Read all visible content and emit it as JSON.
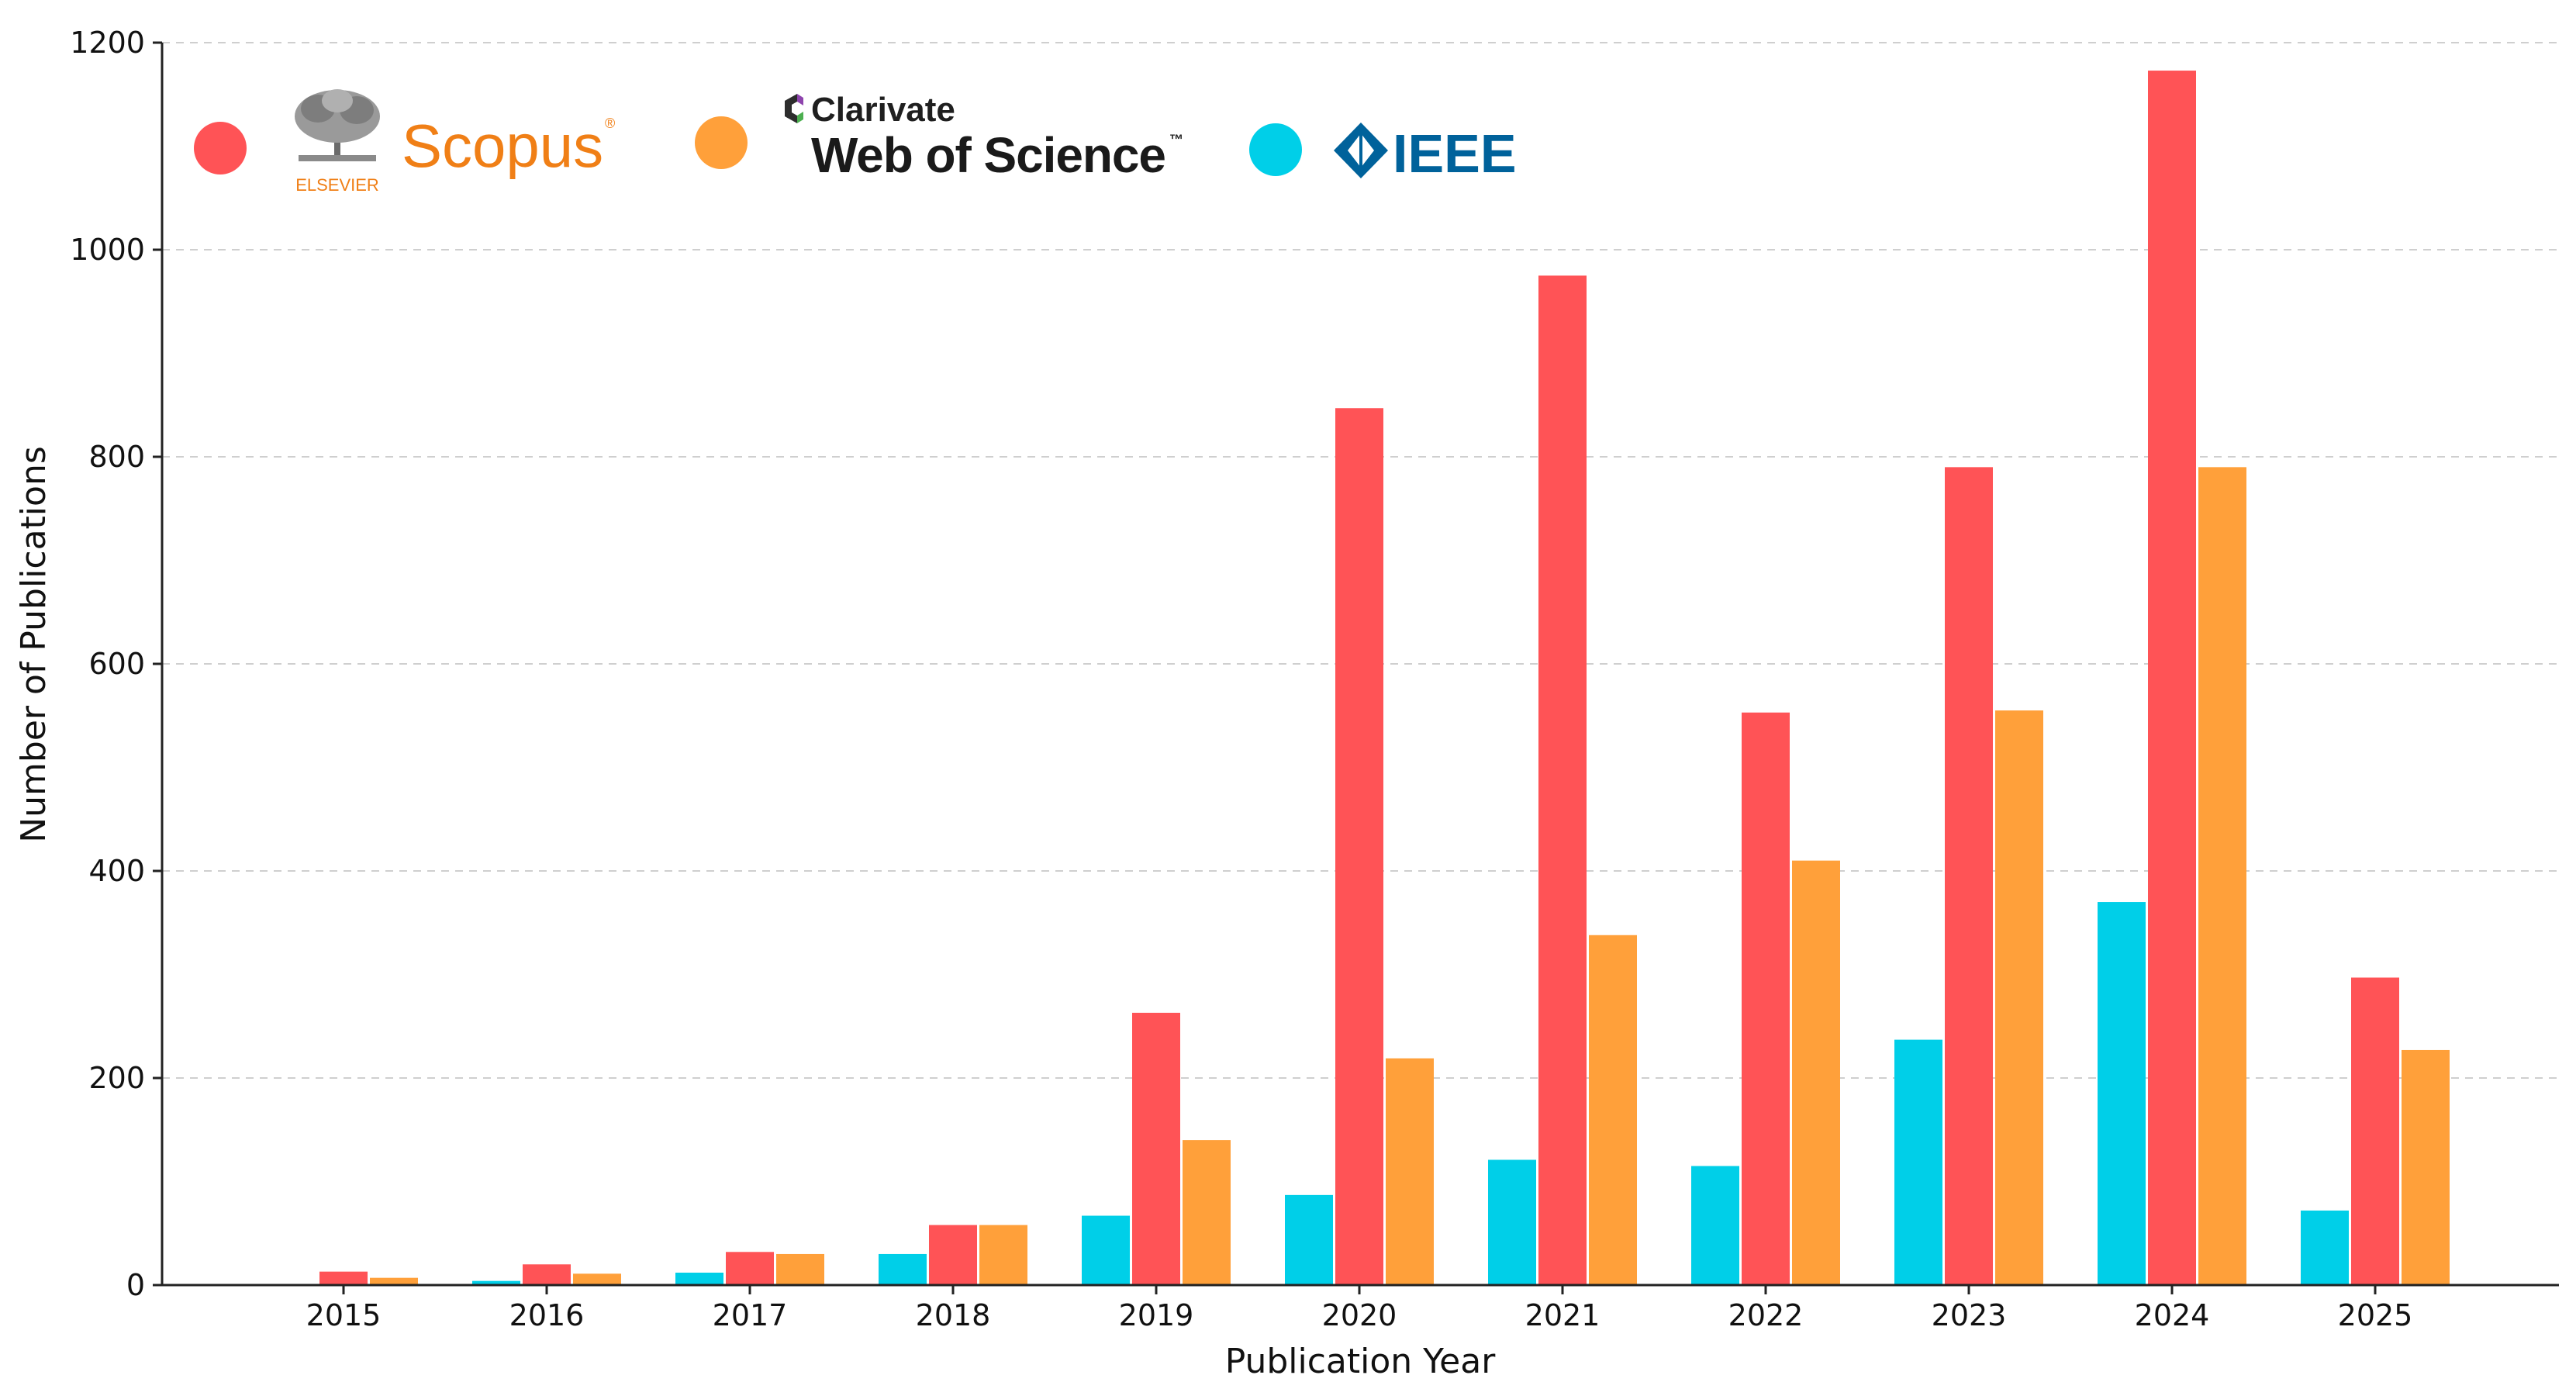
{
  "chart_data": {
    "type": "bar",
    "title": "",
    "xlabel": "Publication Year",
    "ylabel": "Number of Publications",
    "categories": [
      "2015",
      "2016",
      "2017",
      "2018",
      "2019",
      "2020",
      "2021",
      "2022",
      "2023",
      "2024",
      "2025"
    ],
    "series": [
      {
        "name": "IEEE",
        "color": "#00CFE8",
        "values": [
          0,
          4,
          12,
          30,
          67,
          87,
          121,
          115,
          237,
          370,
          72
        ]
      },
      {
        "name": "Scopus",
        "color": "#FF5356",
        "values": [
          13,
          20,
          32,
          58,
          263,
          847,
          975,
          553,
          790,
          1173,
          297
        ]
      },
      {
        "name": "Web of Science",
        "color": "#FFA03A",
        "values": [
          7,
          11,
          30,
          58,
          140,
          219,
          338,
          410,
          555,
          790,
          227
        ]
      }
    ],
    "ylim": [
      0,
      1200
    ],
    "yticks": [
      0,
      200,
      400,
      600,
      800,
      1000,
      1200
    ],
    "grid": "y dashed",
    "legend": {
      "placement": "top-left",
      "scopus": {
        "publisher": "ELSEVIER",
        "brand": "Scopus",
        "mark": "®"
      },
      "wos": {
        "company": "Clarivate",
        "brand": "Web of Science",
        "mark": "™"
      },
      "ieee": {
        "brand": "IEEE"
      }
    }
  }
}
